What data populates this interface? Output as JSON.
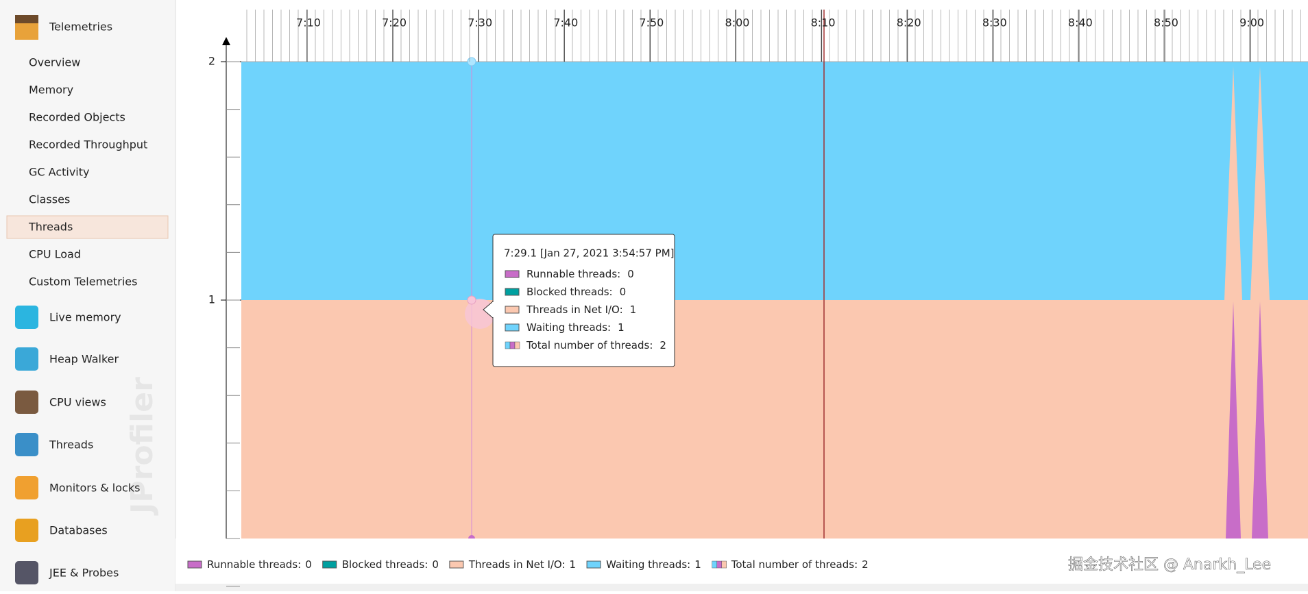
{
  "sidebar": {
    "header": "Telemetries",
    "items": [
      "Overview",
      "Memory",
      "Recorded Objects",
      "Recorded Throughput",
      "GC Activity",
      "Classes",
      "Threads",
      "CPU Load",
      "Custom Telemetries"
    ],
    "sections": [
      "Live memory",
      "Heap Walker",
      "CPU views",
      "Threads",
      "Monitors & locks",
      "Databases",
      "JEE & Probes"
    ],
    "watermark": "JProfiler"
  },
  "chart": {
    "xticks": [
      "7:10",
      "7:20",
      "7:30",
      "7:40",
      "7:50",
      "8:00",
      "8:10",
      "8:20",
      "8:30",
      "8:40",
      "8:50",
      "9:00"
    ],
    "yticks": [
      2,
      1
    ]
  },
  "tooltip": {
    "title": "7:29.1 [Jan 27, 2021 3:54:57 PM]",
    "rows": [
      {
        "label": "Runnable threads:",
        "value": 0
      },
      {
        "label": "Blocked threads:",
        "value": 0
      },
      {
        "label": "Threads in Net I/O:",
        "value": 1
      },
      {
        "label": "Waiting threads:",
        "value": 1
      },
      {
        "label": "Total number of threads:",
        "value": 2
      }
    ]
  },
  "legend": [
    {
      "label": "Runnable threads:",
      "value": 0
    },
    {
      "label": "Blocked threads:",
      "value": 0
    },
    {
      "label": "Threads in Net I/O:",
      "value": 1
    },
    {
      "label": "Waiting threads:",
      "value": 1
    },
    {
      "label": "Total number of threads:",
      "value": 2
    }
  ],
  "credit": "掘金技术社区 @ Anarkh_Lee"
}
